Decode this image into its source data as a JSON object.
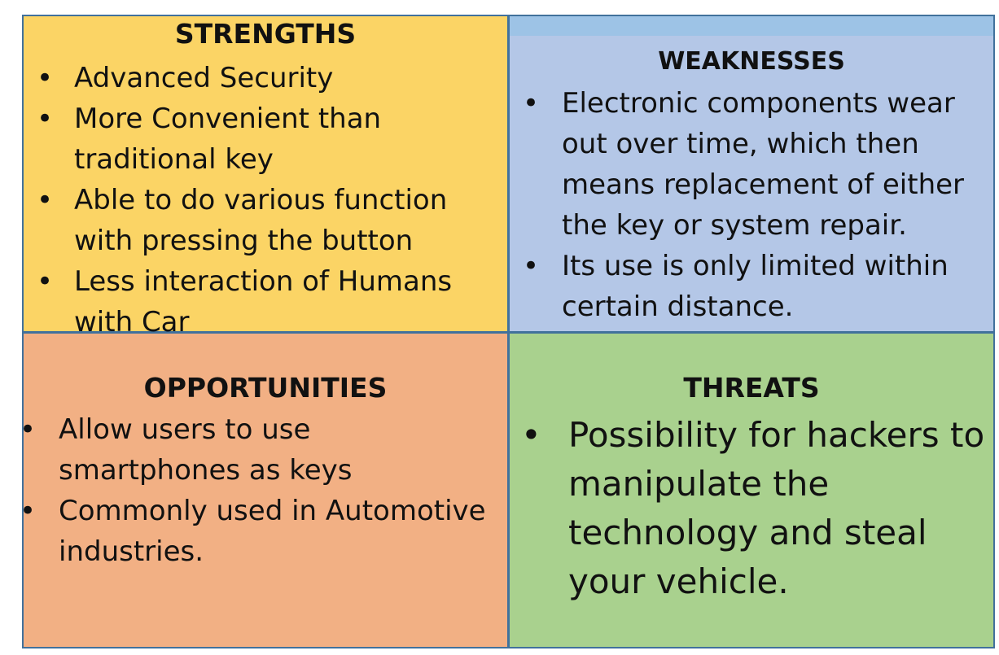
{
  "quadrants": {
    "strengths": {
      "title": "STRENGTHS",
      "color": "#fbd465",
      "items": [
        "Advanced Security",
        "More Convenient than traditional key",
        "Able to do various function with pressing the button",
        "Less interaction of Humans with Car"
      ]
    },
    "weaknesses": {
      "title": "WEAKNESSES",
      "color": "#b4c7e7",
      "items": [
        "Electronic components wear out over time, which then means replacement of either the key or system repair.",
        "Its use is only limited within certain distance."
      ]
    },
    "opportunities": {
      "title": "OPPORTUNITIES",
      "color": "#f2b084",
      "items": [
        "Allow users to use smartphones as keys",
        "Commonly used in Automotive industries."
      ]
    },
    "threats": {
      "title": "THREATS",
      "color": "#a9d18e",
      "items": [
        "Possibility for hackers to manipulate the technology and steal your vehicle."
      ]
    }
  },
  "bullet_glyph": "•"
}
